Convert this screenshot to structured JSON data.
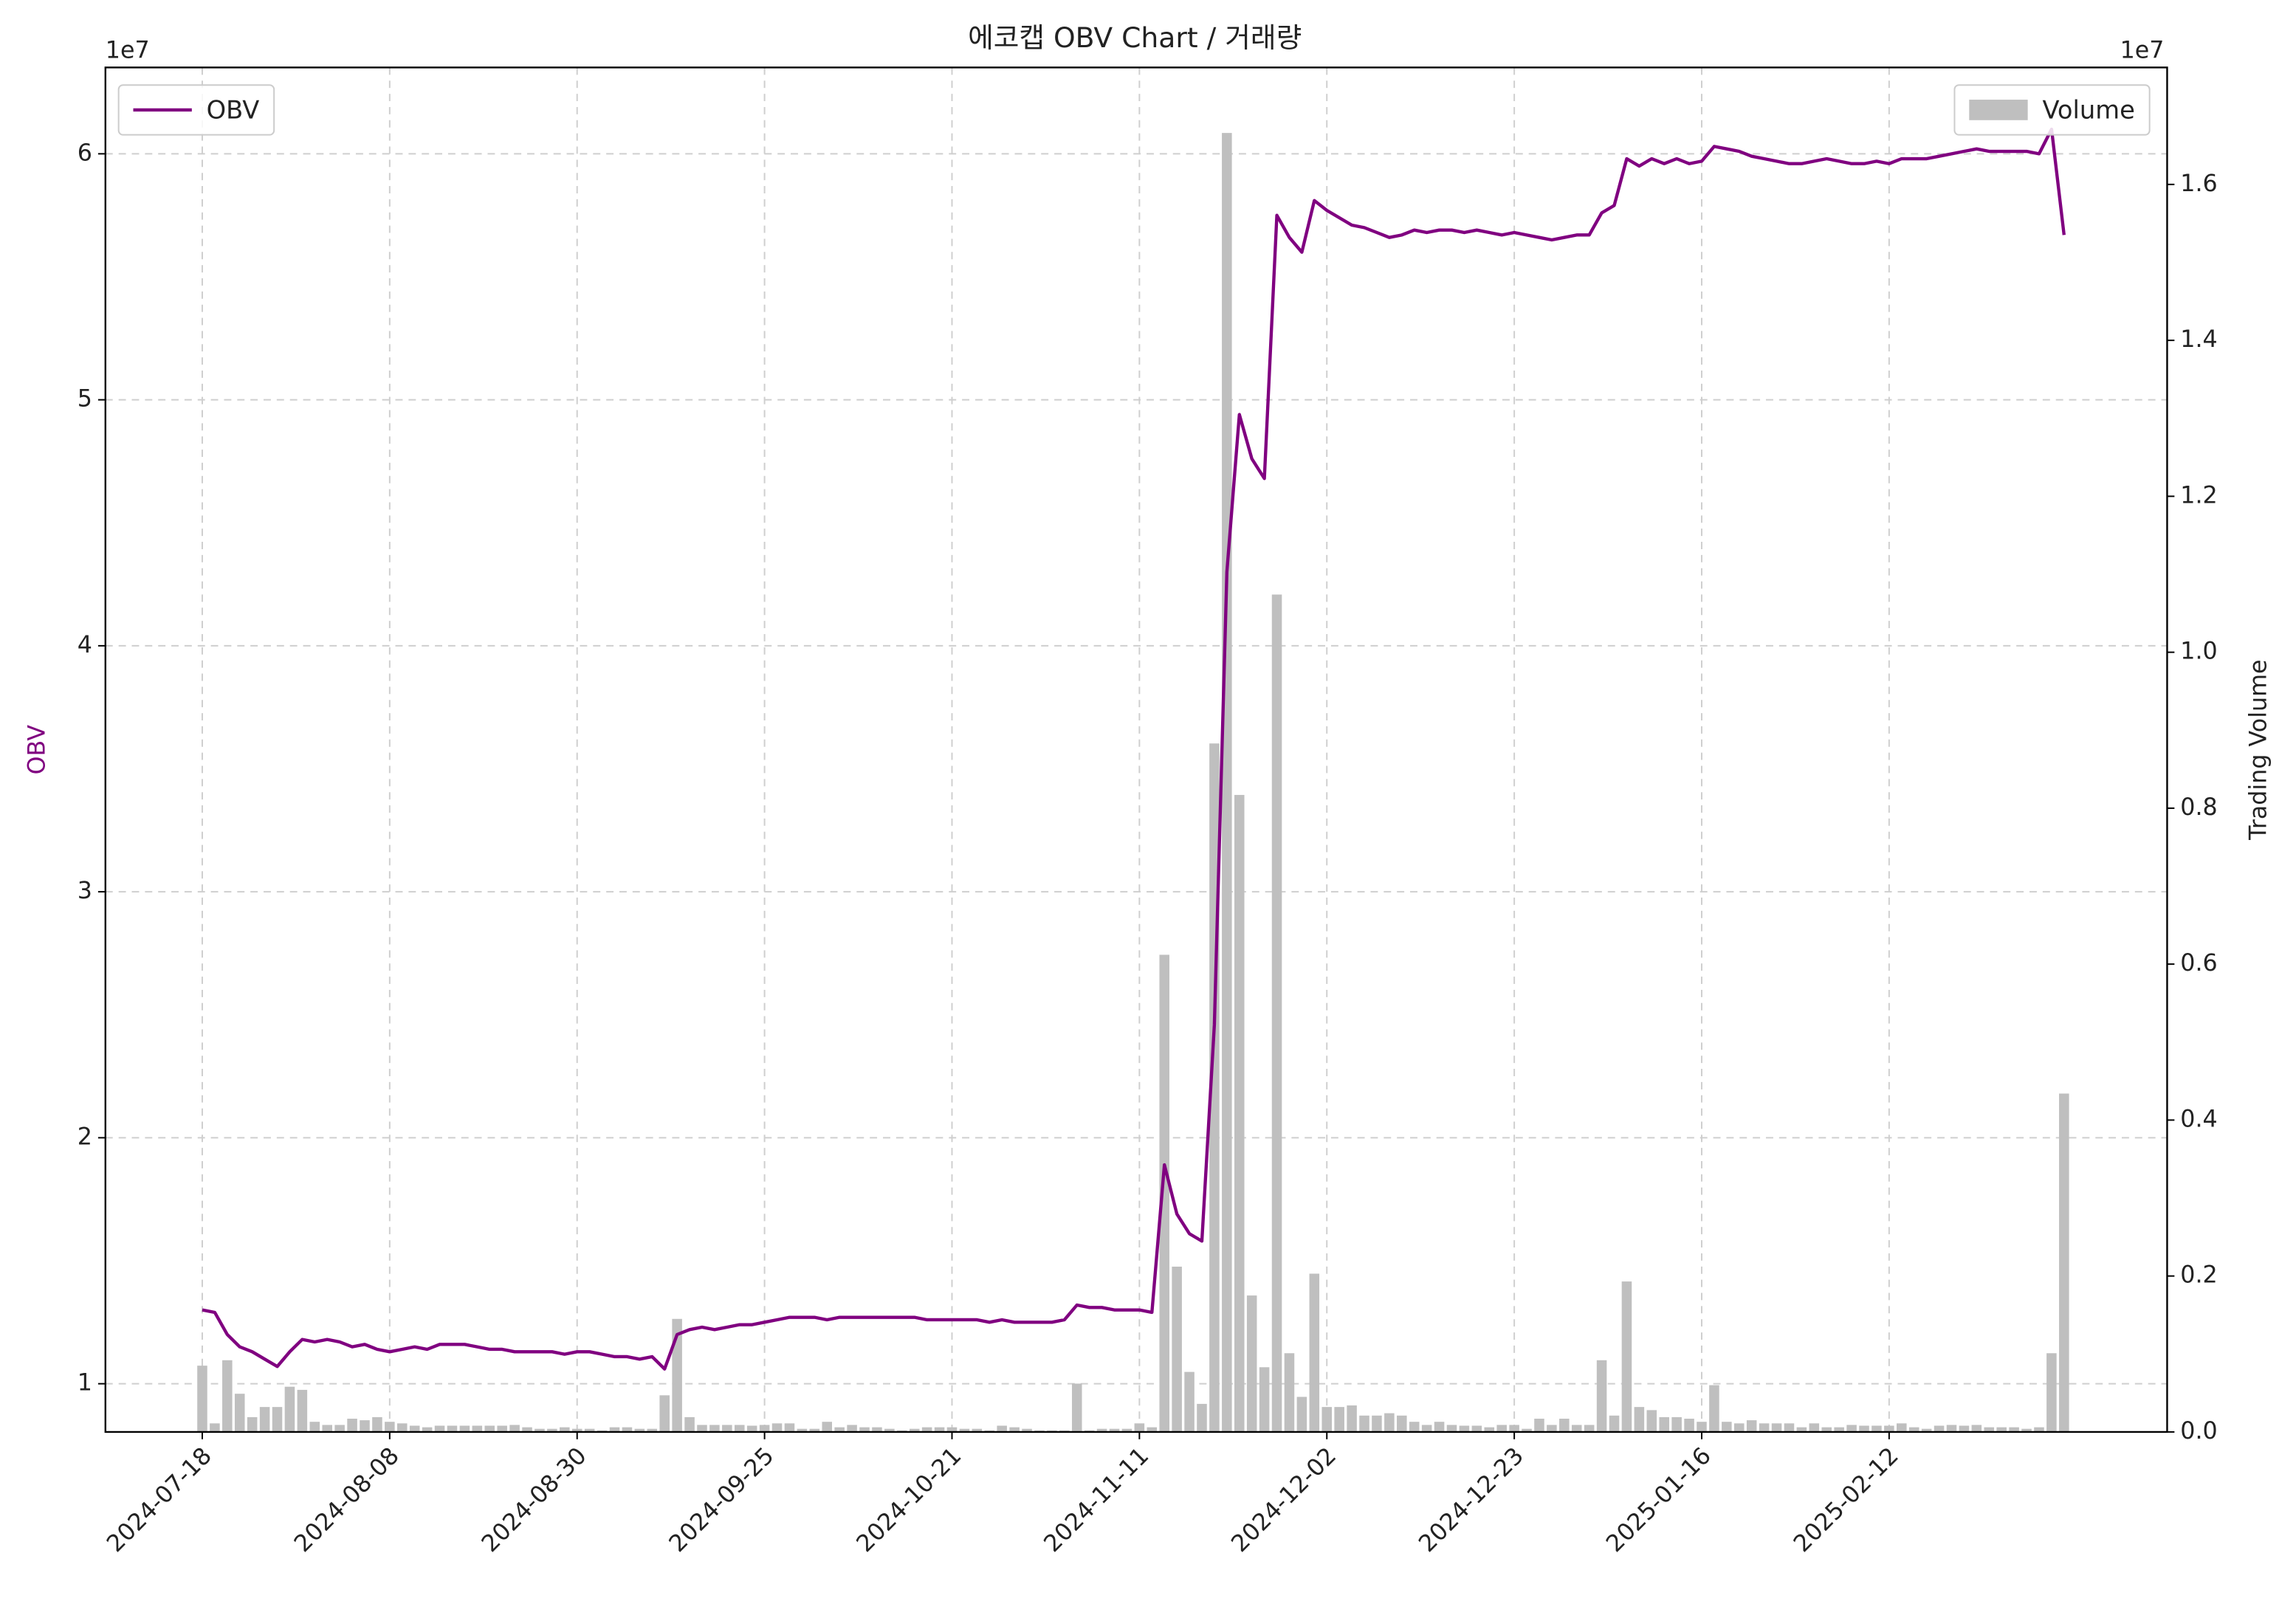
{
  "chart_data": {
    "type": "combo",
    "title": "에코캡 OBV Chart / 거래량",
    "ylabel": "OBV",
    "ylabel_color": "#800080",
    "y2label": "Trading Volume",
    "yoffset": "1e7",
    "y2offset": "1e7",
    "categories": [
      "2024-07-18",
      null,
      null,
      null,
      null,
      null,
      null,
      null,
      null,
      null,
      null,
      null,
      null,
      null,
      null,
      "2024-08-08",
      null,
      null,
      null,
      null,
      null,
      null,
      null,
      null,
      null,
      null,
      null,
      null,
      null,
      null,
      "2024-08-30",
      null,
      null,
      null,
      null,
      null,
      null,
      null,
      null,
      null,
      null,
      null,
      null,
      null,
      null,
      "2024-09-25",
      null,
      null,
      null,
      null,
      null,
      null,
      null,
      null,
      null,
      null,
      null,
      null,
      null,
      null,
      "2024-10-21",
      null,
      null,
      null,
      null,
      null,
      null,
      null,
      null,
      null,
      null,
      null,
      null,
      null,
      null,
      "2024-11-11",
      null,
      null,
      null,
      null,
      null,
      null,
      null,
      null,
      null,
      null,
      null,
      null,
      null,
      null,
      "2024-12-02",
      null,
      null,
      null,
      null,
      null,
      null,
      null,
      null,
      null,
      null,
      null,
      null,
      null,
      null,
      "2024-12-23",
      null,
      null,
      null,
      null,
      null,
      null,
      null,
      null,
      null,
      null,
      null,
      null,
      null,
      null,
      "2025-01-16",
      null,
      null,
      null,
      null,
      null,
      null,
      null,
      null,
      null,
      null,
      null,
      null,
      null,
      null,
      "2025-02-12",
      null,
      null,
      null,
      null,
      null,
      null,
      null,
      null,
      null,
      null,
      null,
      null,
      null,
      null
    ],
    "xlim": [
      -7.75,
      157.25
    ],
    "ylim": [
      0.804,
      6.351
    ],
    "yticks": [
      1,
      2,
      3,
      4,
      5,
      6
    ],
    "y2lim": [
      0,
      1.75
    ],
    "y2ticks": [
      {
        "value": 0,
        "label": "0.0"
      },
      0.2,
      0.4,
      0.6,
      0.8,
      {
        "value": 1,
        "label": "1.0"
      },
      1.2,
      1.4,
      1.6
    ],
    "grid": true,
    "series": [
      {
        "name": "Volume",
        "type": "bar",
        "axis": "y2",
        "color": "#bfbfbf",
        "legend_loc": "upper right",
        "values": [
          0.085,
          0.011,
          0.092,
          0.049,
          0.019,
          0.032,
          0.032,
          0.058,
          0.054,
          0.013,
          0.009,
          0.009,
          0.017,
          0.015,
          0.019,
          0.013,
          0.011,
          0.008,
          0.006,
          0.008,
          0.008,
          0.008,
          0.008,
          0.008,
          0.008,
          0.009,
          0.006,
          0.004,
          0.004,
          0.006,
          0.004,
          0.004,
          0.002,
          0.006,
          0.006,
          0.004,
          0.004,
          0.047,
          0.145,
          0.019,
          0.009,
          0.009,
          0.009,
          0.009,
          0.008,
          0.009,
          0.011,
          0.011,
          0.004,
          0.004,
          0.013,
          0.006,
          0.009,
          0.006,
          0.006,
          0.004,
          0.002,
          0.004,
          0.006,
          0.006,
          0.006,
          0.004,
          0.004,
          0.002,
          0.008,
          0.006,
          0.004,
          0.002,
          0.002,
          0.002,
          0.062,
          0.002,
          0.004,
          0.004,
          0.004,
          0.011,
          0.006,
          0.612,
          0.212,
          0.077,
          0.036,
          0.883,
          1.666,
          0.817,
          0.175,
          0.083,
          1.074,
          0.101,
          0.045,
          0.203,
          0.032,
          0.032,
          0.034,
          0.021,
          0.021,
          0.024,
          0.021,
          0.013,
          0.009,
          0.013,
          0.009,
          0.008,
          0.008,
          0.006,
          0.009,
          0.009,
          0.004,
          0.017,
          0.009,
          0.017,
          0.009,
          0.009,
          0.092,
          0.021,
          0.193,
          0.032,
          0.028,
          0.019,
          0.019,
          0.017,
          0.013,
          0.06,
          0.013,
          0.011,
          0.015,
          0.011,
          0.011,
          0.011,
          0.006,
          0.011,
          0.006,
          0.006,
          0.009,
          0.008,
          0.008,
          0.008,
          0.011,
          0.006,
          0.004,
          0.008,
          0.009,
          0.008,
          0.009,
          0.006,
          0.006,
          0.006,
          0.004,
          0.006,
          0.101,
          0.434
        ]
      },
      {
        "name": "OBV",
        "type": "line",
        "color": "#800080",
        "legend_loc": "upper left",
        "values": [
          1.3,
          1.29,
          1.2,
          1.15,
          1.13,
          1.1,
          1.07,
          1.13,
          1.18,
          1.17,
          1.18,
          1.17,
          1.15,
          1.16,
          1.14,
          1.13,
          1.14,
          1.15,
          1.14,
          1.16,
          1.16,
          1.16,
          1.15,
          1.14,
          1.14,
          1.13,
          1.13,
          1.13,
          1.13,
          1.12,
          1.13,
          1.13,
          1.12,
          1.11,
          1.11,
          1.1,
          1.11,
          1.06,
          1.2,
          1.22,
          1.23,
          1.22,
          1.23,
          1.24,
          1.24,
          1.25,
          1.26,
          1.27,
          1.27,
          1.27,
          1.26,
          1.27,
          1.27,
          1.27,
          1.27,
          1.27,
          1.27,
          1.27,
          1.26,
          1.26,
          1.26,
          1.26,
          1.26,
          1.25,
          1.26,
          1.25,
          1.25,
          1.25,
          1.25,
          1.26,
          1.32,
          1.31,
          1.31,
          1.3,
          1.3,
          1.3,
          1.29,
          1.89,
          1.69,
          1.61,
          1.58,
          2.46,
          4.3,
          4.94,
          4.76,
          4.68,
          5.75,
          5.66,
          5.6,
          5.81,
          5.77,
          5.74,
          5.71,
          5.7,
          5.68,
          5.66,
          5.67,
          5.69,
          5.68,
          5.69,
          5.69,
          5.68,
          5.69,
          5.68,
          5.67,
          5.68,
          5.67,
          5.66,
          5.65,
          5.66,
          5.67,
          5.67,
          5.76,
          5.79,
          5.98,
          5.95,
          5.98,
          5.96,
          5.98,
          5.96,
          5.97,
          6.03,
          6.02,
          6.01,
          5.99,
          5.98,
          5.97,
          5.96,
          5.96,
          5.97,
          5.98,
          5.97,
          5.96,
          5.96,
          5.97,
          5.96,
          5.98,
          5.98,
          5.98,
          5.99,
          6.0,
          6.01,
          6.02,
          6.01,
          6.01,
          6.01,
          6.01,
          6.0,
          6.1,
          5.67
        ]
      }
    ]
  }
}
